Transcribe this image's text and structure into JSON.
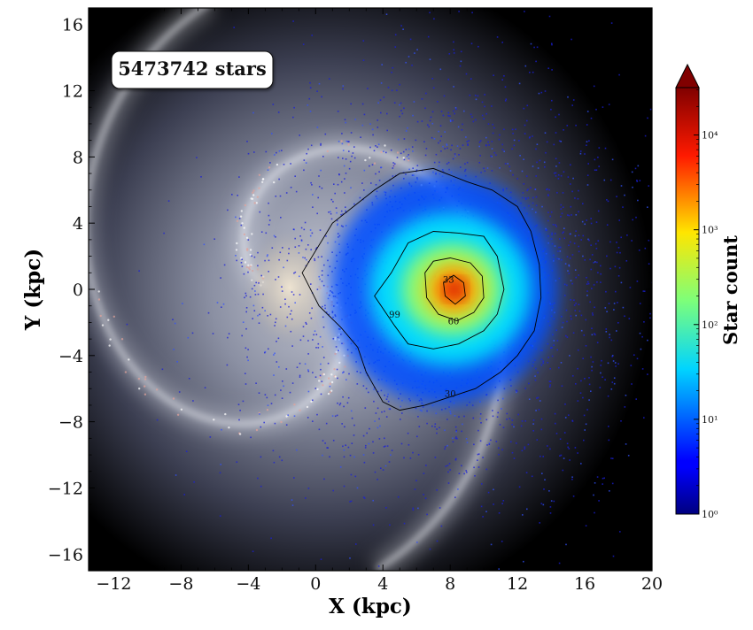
{
  "chart_data": {
    "type": "heatmap",
    "title": "",
    "xlabel": "X (kpc)",
    "ylabel": "Y (kpc)",
    "xlim": [
      -13.5,
      20
    ],
    "ylim": [
      -17,
      17
    ],
    "xticks": [
      -12,
      -8,
      -4,
      0,
      4,
      8,
      12,
      16,
      20
    ],
    "yticks": [
      -16,
      -12,
      -8,
      -4,
      0,
      4,
      8,
      12,
      16
    ],
    "xtick_labels": [
      "−12",
      "−8",
      "−4",
      "0",
      "4",
      "8",
      "12",
      "16",
      "20"
    ],
    "ytick_labels": [
      "−16",
      "−12",
      "−8",
      "−4",
      "0",
      "4",
      "8",
      "12",
      "16"
    ],
    "annotation": "5473742 stars",
    "background": "Milky Way face-on artist image",
    "peak_position": [
      8.2,
      0.0
    ],
    "colorbar": {
      "label": "Star count",
      "scale": "log",
      "colormap": "jet",
      "range": [
        1,
        31623
      ],
      "extend": "max",
      "ticks": [
        1,
        10,
        100,
        1000,
        10000
      ],
      "tick_labels": [
        "10⁰",
        "10¹",
        "10²",
        "10³",
        "10⁴"
      ]
    },
    "contours": [
      {
        "level": 30,
        "label": "30",
        "points": [
          [
            -0.8,
            1.0
          ],
          [
            1.0,
            4.0
          ],
          [
            3.5,
            6.0
          ],
          [
            5.0,
            7.0
          ],
          [
            7.0,
            7.3
          ],
          [
            9.0,
            6.5
          ],
          [
            10.5,
            6.0
          ],
          [
            12.0,
            5.0
          ],
          [
            12.8,
            3.5
          ],
          [
            13.3,
            1.5
          ],
          [
            13.4,
            -0.5
          ],
          [
            13.0,
            -2.5
          ],
          [
            12.0,
            -4.0
          ],
          [
            11.0,
            -5.0
          ],
          [
            9.5,
            -6.0
          ],
          [
            8.0,
            -6.5
          ],
          [
            6.5,
            -7.0
          ],
          [
            5.0,
            -7.3
          ],
          [
            4.0,
            -6.8
          ],
          [
            3.0,
            -5.0
          ],
          [
            2.5,
            -3.5
          ],
          [
            1.5,
            -2.3
          ],
          [
            0.2,
            -1.0
          ]
        ]
      },
      {
        "level": 60,
        "label": "60",
        "points": [
          [
            3.5,
            -0.4
          ],
          [
            4.5,
            1.0
          ],
          [
            5.5,
            2.8
          ],
          [
            7.0,
            3.5
          ],
          [
            8.5,
            3.4
          ],
          [
            10.0,
            3.2
          ],
          [
            10.8,
            2.0
          ],
          [
            11.2,
            0.0
          ],
          [
            10.8,
            -1.5
          ],
          [
            10.0,
            -2.5
          ],
          [
            8.5,
            -3.3
          ],
          [
            7.0,
            -3.6
          ],
          [
            5.5,
            -3.3
          ],
          [
            4.7,
            -2.2
          ]
        ]
      },
      {
        "level": 99,
        "label": "99",
        "points": [
          [
            6.5,
            1.0
          ],
          [
            7.0,
            1.7
          ],
          [
            8.0,
            1.9
          ],
          [
            9.2,
            1.6
          ],
          [
            9.9,
            0.8
          ],
          [
            10.0,
            -0.5
          ],
          [
            9.4,
            -1.4
          ],
          [
            8.4,
            -1.9
          ],
          [
            7.3,
            -1.5
          ],
          [
            6.6,
            -0.5
          ]
        ]
      },
      {
        "level": 33,
        "label": "33",
        "points": [
          [
            7.6,
            0.4
          ],
          [
            8.2,
            0.85
          ],
          [
            8.8,
            0.4
          ],
          [
            8.9,
            -0.4
          ],
          [
            8.3,
            -0.9
          ],
          [
            7.7,
            -0.4
          ]
        ]
      }
    ],
    "density_blobs": [
      {
        "x": 7.6,
        "y": 0.0,
        "rx": 6.8,
        "ry": 7.0,
        "value": 8
      },
      {
        "x": 8.0,
        "y": 0.0,
        "rx": 4.8,
        "ry": 4.6,
        "value": 40
      },
      {
        "x": 8.1,
        "y": 0.0,
        "rx": 3.0,
        "ry": 2.8,
        "value": 250
      },
      {
        "x": 8.2,
        "y": 0.0,
        "rx": 1.8,
        "ry": 1.7,
        "value": 1200
      },
      {
        "x": 8.2,
        "y": 0.0,
        "rx": 0.9,
        "ry": 0.85,
        "value": 6000
      },
      {
        "x": 8.3,
        "y": 0.0,
        "rx": 0.45,
        "ry": 0.45,
        "value": 20000
      }
    ]
  }
}
